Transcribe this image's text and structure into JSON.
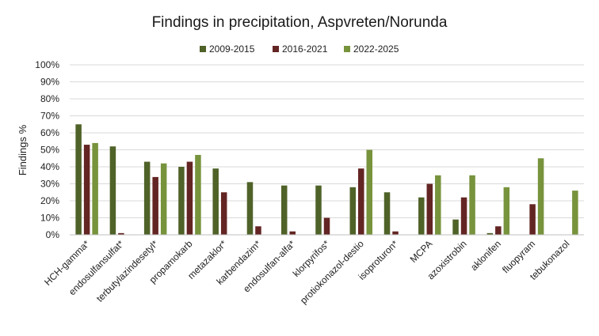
{
  "chart_data": {
    "type": "bar",
    "title": "Findings in precipitation, Aspvreten/Norunda",
    "ylabel": "Findings %",
    "xlabel": "",
    "ylim": [
      0,
      100
    ],
    "yticks": [
      "0%",
      "10%",
      "20%",
      "30%",
      "40%",
      "50%",
      "60%",
      "70%",
      "80%",
      "90%",
      "100%"
    ],
    "grid": true,
    "legend_position": "top",
    "categories": [
      "HCH-gamma*",
      "endosulfansulfat*",
      "terbutylazindesetyl*",
      "propamokarb",
      "metazaklor*",
      "karbendazim*",
      "endosulfan-alfa*",
      "klorpyrifos*",
      "protiokonazol-destio",
      "isoproturon*",
      "MCPA",
      "azoxistrobin",
      "aklonifen",
      "fluopyram",
      "tebukonazol"
    ],
    "series": [
      {
        "name": "2009-2015",
        "color": "#4f6228",
        "values": [
          65,
          52,
          43,
          40,
          39,
          31,
          29,
          29,
          28,
          25,
          22,
          9,
          1,
          0,
          0
        ]
      },
      {
        "name": "2016-2021",
        "color": "#632523",
        "values": [
          53,
          1,
          34,
          43,
          25,
          5,
          2,
          10,
          39,
          2,
          30,
          22,
          5,
          18,
          0
        ]
      },
      {
        "name": "2022-2025",
        "color": "#77933c",
        "values": [
          54,
          0,
          42,
          47,
          0,
          0,
          0,
          0,
          50,
          0,
          35,
          35,
          28,
          45,
          26
        ]
      }
    ]
  }
}
